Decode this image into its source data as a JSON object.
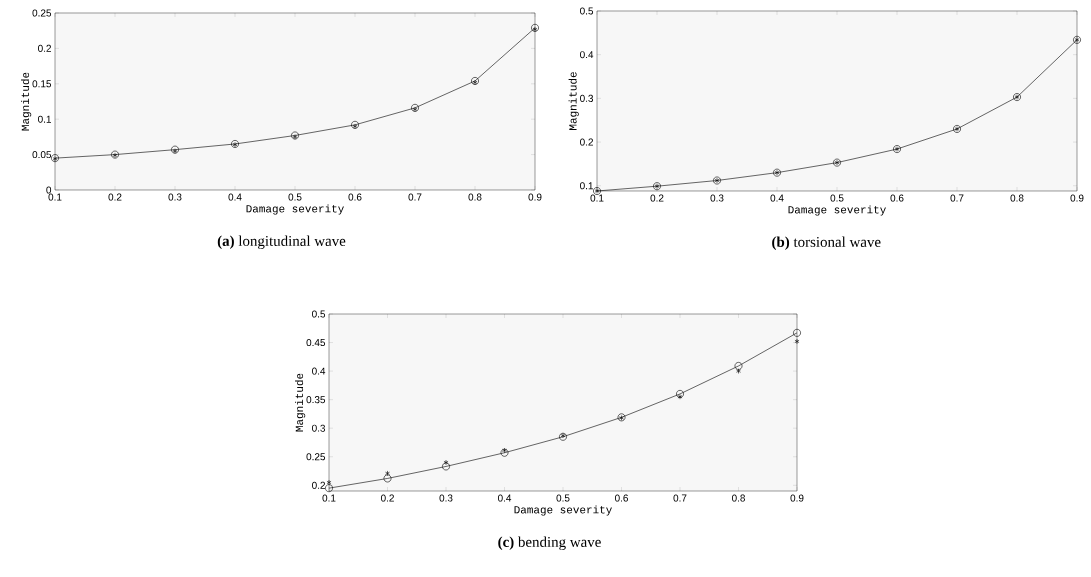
{
  "chart_data": [
    {
      "type": "line",
      "xlabel": "Damage severity",
      "ylabel": "Magnitude",
      "annotations": [
        "**(a)** longitudinal wave"
      ],
      "x": [
        0.1,
        0.2,
        0.3,
        0.4,
        0.5,
        0.6,
        0.7,
        0.8,
        0.9
      ],
      "series": [
        {
          "marker": "circle",
          "line_style": "solid",
          "color": "#000000",
          "values": [
            0.045,
            0.05,
            0.057,
            0.065,
            0.077,
            0.092,
            0.116,
            0.154,
            0.229
          ]
        },
        {
          "type": "scatter",
          "marker": "cross",
          "color": "#000000",
          "values": [
            0.044,
            0.049,
            0.055,
            0.064,
            0.075,
            0.09,
            0.114,
            0.152,
            0.227
          ]
        }
      ],
      "xlim": [
        0.1,
        0.9
      ],
      "ylim": [
        0,
        0.25
      ],
      "xticks": [
        0.1,
        0.2,
        0.3,
        0.4,
        0.5,
        0.6,
        0.7,
        0.8,
        0.9
      ],
      "yticks": [
        0,
        0.05,
        0.1,
        0.15,
        0.2,
        0.25
      ],
      "grid": false
    },
    {
      "type": "line",
      "xlabel": "Damage severity",
      "ylabel": "Magnitude",
      "annotations": [
        "**(b)** torsional wave"
      ],
      "x": [
        0.1,
        0.2,
        0.3,
        0.4,
        0.5,
        0.6,
        0.7,
        0.8,
        0.9
      ],
      "series": [
        {
          "marker": "circle",
          "line_style": "solid",
          "color": "#000000",
          "values": [
            0.088,
            0.099,
            0.112,
            0.13,
            0.153,
            0.184,
            0.23,
            0.303,
            0.434
          ]
        },
        {
          "type": "scatter",
          "marker": "cross",
          "color": "#000000",
          "values": [
            0.088,
            0.099,
            0.112,
            0.13,
            0.153,
            0.184,
            0.23,
            0.303,
            0.434
          ]
        }
      ],
      "xlim": [
        0.1,
        0.9
      ],
      "ylim": [
        0.088,
        0.5
      ],
      "xticks": [
        0.1,
        0.2,
        0.3,
        0.4,
        0.5,
        0.6,
        0.7,
        0.8,
        0.9
      ],
      "yticks": [
        0.1,
        0.2,
        0.3,
        0.4,
        0.5
      ],
      "grid": false
    },
    {
      "type": "line",
      "xlabel": "Damage severity",
      "ylabel": "Magnitude",
      "annotations": [
        "**(c)** bending wave"
      ],
      "x": [
        0.1,
        0.2,
        0.3,
        0.4,
        0.5,
        0.6,
        0.7,
        0.8,
        0.9
      ],
      "series": [
        {
          "marker": "circle",
          "line_style": "solid",
          "color": "#000000",
          "values": [
            0.195,
            0.212,
            0.233,
            0.257,
            0.285,
            0.319,
            0.36,
            0.409,
            0.467
          ]
        },
        {
          "type": "scatter",
          "marker": "cross",
          "color": "#000000",
          "values": [
            0.205,
            0.221,
            0.24,
            0.261,
            0.287,
            0.318,
            0.355,
            0.4,
            0.452
          ]
        }
      ],
      "xlim": [
        0.1,
        0.9
      ],
      "ylim": [
        0.19,
        0.5
      ],
      "xticks": [
        0.1,
        0.2,
        0.3,
        0.4,
        0.5,
        0.6,
        0.7,
        0.8,
        0.9
      ],
      "yticks": [
        0.2,
        0.25,
        0.3,
        0.35,
        0.4,
        0.45,
        0.5
      ],
      "grid": false
    }
  ]
}
